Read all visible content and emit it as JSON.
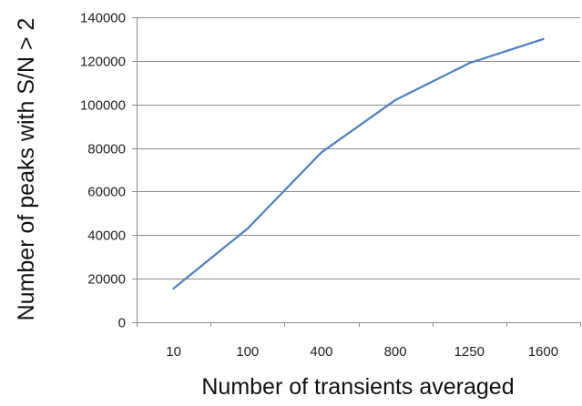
{
  "chart_data": {
    "type": "line",
    "title": "",
    "xlabel": "Number of transients averaged",
    "ylabel": "Number of peaks with S/N > 2",
    "categories": [
      "10",
      "100",
      "400",
      "800",
      "1250",
      "1600"
    ],
    "series": [
      {
        "values": [
          15500,
          43000,
          78000,
          102000,
          119000,
          130000
        ]
      }
    ],
    "ylim": [
      0,
      140000
    ],
    "yticks": [
      0,
      20000,
      40000,
      60000,
      80000,
      100000,
      120000,
      140000
    ],
    "ytick_labels": [
      "0",
      "20000",
      "40000",
      "60000",
      "80000",
      "100000",
      "120000",
      "140000"
    ],
    "grid": "horizontal",
    "legend": "none",
    "colors": {
      "line": "#4F81BD",
      "grid": "#8c8c8c",
      "axis": "#8c8c8c"
    }
  }
}
